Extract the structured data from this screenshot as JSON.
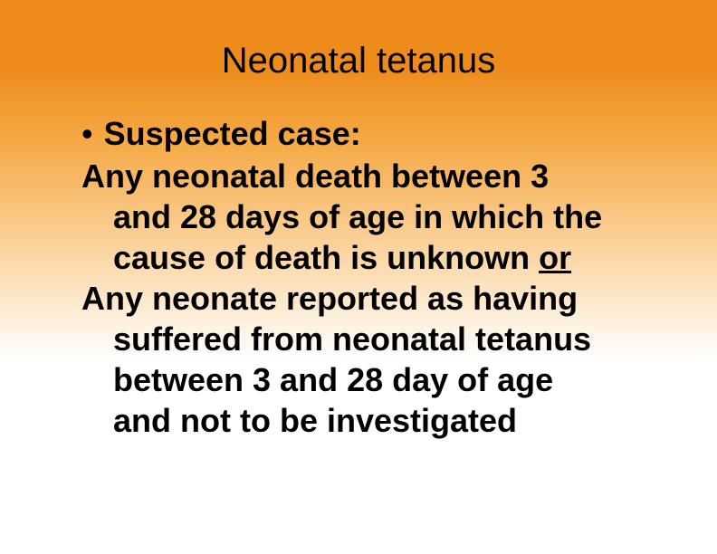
{
  "slide": {
    "title": "Neonatal tetanus",
    "bullet_label": "Suspected case:",
    "line1": "Any neonatal death between 3",
    "line2": "and 28 days of age in which the",
    "line3_part1": "cause of death is unknown ",
    "line3_or": "or",
    "line4": "Any neonate reported as having",
    "line5": "suffered from neonatal tetanus",
    "line6": "between 3 and 28 day of age",
    "line7": "and not to be investigated"
  },
  "colors": {
    "background_top": "#ed8b1b",
    "background_bottom": "#ffffff",
    "text_color": "#000000"
  },
  "typography": {
    "title_fontsize": 40,
    "body_fontsize": 36,
    "font_family": "Arial"
  }
}
